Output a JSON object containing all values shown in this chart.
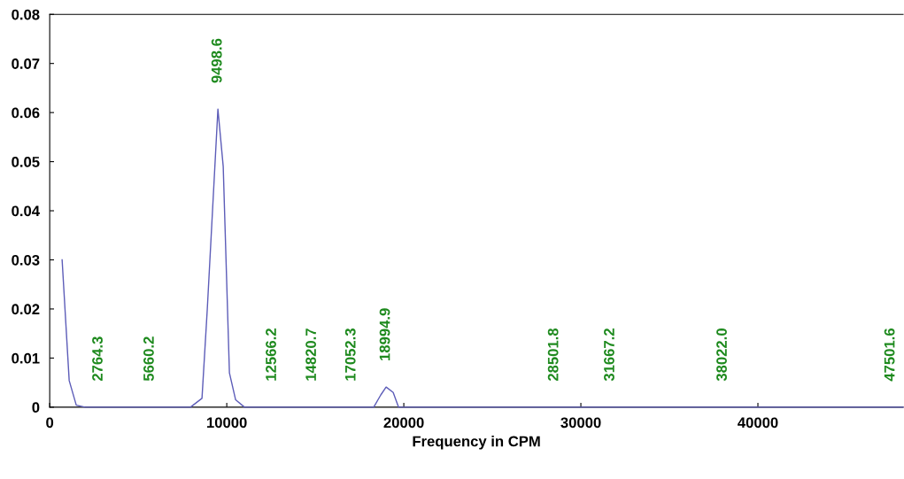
{
  "chart_data": {
    "type": "line",
    "xlabel": "Frequency in CPM",
    "series": [
      {
        "color": "#5c5cb8",
        "x": [
          700,
          1100,
          1500,
          2000,
          3000,
          5000,
          7000,
          7950,
          8600,
          8900,
          9500,
          9800,
          10150,
          10500,
          11000,
          14000,
          18000,
          18300,
          18700,
          19000,
          19400,
          19700,
          22000,
          30000,
          40000,
          48200
        ],
        "values": [
          0.03,
          0.0054,
          0.0004,
          0,
          0,
          0,
          0,
          0,
          0.0018,
          0.02,
          0.0607,
          0.049,
          0.007,
          0.0015,
          0,
          0,
          0,
          0,
          0.0025,
          0.0041,
          0.003,
          0,
          0,
          0,
          0,
          0
        ]
      }
    ],
    "annotations": [
      {
        "text": "2764.3",
        "x": 2764.3,
        "y": 0
      },
      {
        "text": "5660.2",
        "x": 5660.2,
        "y": 0
      },
      {
        "text": "9498.6",
        "x": 9498.6,
        "y": 0.0607
      },
      {
        "text": "12566.2",
        "x": 12566.2,
        "y": 0
      },
      {
        "text": "14820.7",
        "x": 14820.7,
        "y": 0
      },
      {
        "text": "17052.3",
        "x": 17052.3,
        "y": 0
      },
      {
        "text": "18994.9",
        "x": 18994.9,
        "y": 0.0041
      },
      {
        "text": "28501.8",
        "x": 28501.8,
        "y": 0
      },
      {
        "text": "31667.2",
        "x": 31667.2,
        "y": 0
      },
      {
        "text": "38022.0",
        "x": 38022.0,
        "y": 0
      },
      {
        "text": "47501.6",
        "x": 47501.6,
        "y": 0
      }
    ],
    "xlim": [
      0,
      48200
    ],
    "xticks": [
      0,
      10000,
      20000,
      30000,
      40000
    ],
    "ylim": [
      0,
      0.08
    ],
    "yticks": [
      0,
      0.01,
      0.02,
      0.03,
      0.04,
      0.05,
      0.06,
      0.07,
      0.08
    ],
    "grid": false,
    "legend": false,
    "marker": "none",
    "line_style": "solid"
  }
}
